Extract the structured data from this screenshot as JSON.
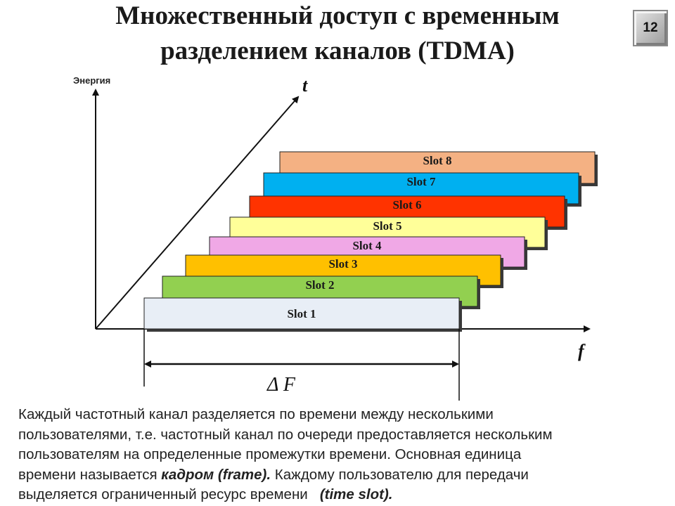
{
  "slide": {
    "title_line1": "Множественный доступ с временным",
    "title_line2": "разделением каналов (TDMA)",
    "page_number": "12"
  },
  "diagram": {
    "y_axis_label": "Энергия",
    "t_axis_label": "t",
    "f_axis_label": "f",
    "band_label": "Δ F",
    "slots": [
      {
        "label": "Slot 1",
        "color": "#e8eef6"
      },
      {
        "label": "Slot 2",
        "color": "#92d050"
      },
      {
        "label": "Slot 3",
        "color": "#ffc000"
      },
      {
        "label": "Slot 4",
        "color": "#f0a8e6"
      },
      {
        "label": "Slot 5",
        "color": "#ffff99"
      },
      {
        "label": "Slot 6",
        "color": "#ff3300"
      },
      {
        "label": "Slot 7",
        "color": "#00b0f0"
      },
      {
        "label": "Slot 8",
        "color": "#f4b183"
      }
    ]
  },
  "description": {
    "line1": "Каждый частотный канал разделяется по времени между несколькими",
    "line2": "пользователями, т.е. частотный канал по очереди предоставляется нескольким",
    "line3": "пользователям на определенные промежутки времени. Основная единица",
    "line4_pre": "времени называется ",
    "line4_em": "кадром (frame).",
    "line4_post": " Каждому пользователю для передачи",
    "line5_pre": "выделяется ограниченный ресурс времени   ",
    "line5_em": "(time slot)."
  }
}
